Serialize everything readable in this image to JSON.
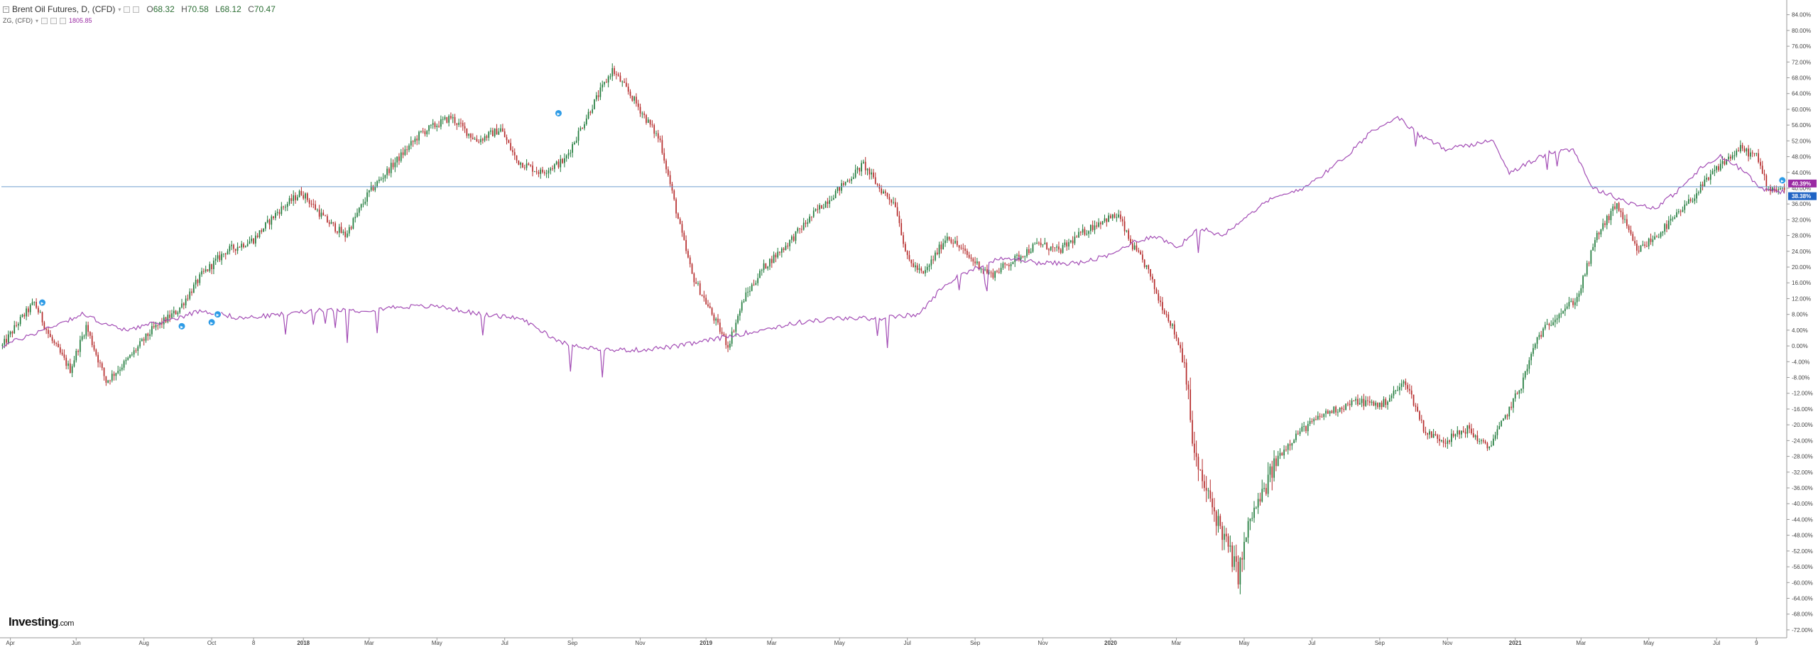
{
  "legend": {
    "main": {
      "title": "Brent Oil Futures, D, (CFD)",
      "open_label": "O",
      "open_value": "68.32",
      "high_label": "H",
      "high_value": "70.58",
      "low_label": "L",
      "low_value": "68.12",
      "close_label": "C",
      "close_value": "70.47"
    },
    "comparison": {
      "title": "ZG, (CFD)",
      "value": "1805.85"
    }
  },
  "brand": {
    "name": "Investing",
    "suffix": ".com"
  },
  "colors": {
    "up": "#1e7a3a",
    "down": "#b52b2b",
    "comparison_line": "#a34db5",
    "current_line": "#6f9fcf",
    "badge_blue": "#1f63c4",
    "badge_purple": "#9a2aa3",
    "event_marker": "#2d9be6"
  },
  "chart_data": {
    "type": "line",
    "title": "Brent Oil Futures, D, (CFD)",
    "y_unit": "%",
    "ylim": [
      -74,
      87
    ],
    "y_ticks": [
      "84.00%",
      "80.00%",
      "76.00%",
      "72.00%",
      "68.00%",
      "64.00%",
      "60.00%",
      "56.00%",
      "52.00%",
      "48.00%",
      "44.00%",
      "40.00%",
      "36.00%",
      "32.00%",
      "28.00%",
      "24.00%",
      "20.00%",
      "16.00%",
      "12.00%",
      "8.00%",
      "4.00%",
      "0.00%",
      "-4.00%",
      "-8.00%",
      "-12.00%",
      "-16.00%",
      "-20.00%",
      "-24.00%",
      "-28.00%",
      "-32.00%",
      "-36.00%",
      "-40.00%",
      "-44.00%",
      "-48.00%",
      "-52.00%",
      "-56.00%",
      "-60.00%",
      "-64.00%",
      "-68.00%",
      "-72.00%"
    ],
    "x_ticks": [
      {
        "label": "Apr",
        "idx": 4
      },
      {
        "label": "Jun",
        "idx": 37
      },
      {
        "label": "Aug",
        "idx": 71
      },
      {
        "label": "Oct",
        "idx": 105
      },
      {
        "label": "8",
        "idx": 126
      },
      {
        "label": "2018",
        "idx": 151
      },
      {
        "label": "Mar",
        "idx": 184
      },
      {
        "label": "May",
        "idx": 218
      },
      {
        "label": "Jul",
        "idx": 252
      },
      {
        "label": "Sep",
        "idx": 286
      },
      {
        "label": "Nov",
        "idx": 320
      },
      {
        "label": "2019",
        "idx": 353
      },
      {
        "label": "Mar",
        "idx": 386
      },
      {
        "label": "May",
        "idx": 420
      },
      {
        "label": "Jul",
        "idx": 454
      },
      {
        "label": "Sep",
        "idx": 488
      },
      {
        "label": "Nov",
        "idx": 522
      },
      {
        "label": "2020",
        "idx": 556
      },
      {
        "label": "Mar",
        "idx": 589
      },
      {
        "label": "May",
        "idx": 623
      },
      {
        "label": "Jul",
        "idx": 657
      },
      {
        "label": "Sep",
        "idx": 691
      },
      {
        "label": "Nov",
        "idx": 725
      },
      {
        "label": "2021",
        "idx": 759
      },
      {
        "label": "Mar",
        "idx": 792
      },
      {
        "label": "May",
        "idx": 826
      },
      {
        "label": "Jul",
        "idx": 860
      },
      {
        "label": "9",
        "idx": 880
      }
    ],
    "n_points": 895,
    "series": [
      {
        "name": "Brent Oil Futures, D, (CFD)",
        "style": "candlestick",
        "anchors": [
          [
            0,
            0
          ],
          [
            8,
            6
          ],
          [
            16,
            11
          ],
          [
            24,
            2
          ],
          [
            34,
            -6
          ],
          [
            42,
            5
          ],
          [
            52,
            -9
          ],
          [
            62,
            -4
          ],
          [
            75,
            4
          ],
          [
            88,
            9
          ],
          [
            100,
            18
          ],
          [
            112,
            24
          ],
          [
            126,
            27
          ],
          [
            138,
            34
          ],
          [
            150,
            39
          ],
          [
            162,
            32
          ],
          [
            172,
            28
          ],
          [
            184,
            39
          ],
          [
            196,
            46
          ],
          [
            210,
            54
          ],
          [
            225,
            58
          ],
          [
            238,
            52
          ],
          [
            250,
            55
          ],
          [
            258,
            47
          ],
          [
            270,
            44
          ],
          [
            282,
            47
          ],
          [
            295,
            60
          ],
          [
            306,
            70
          ],
          [
            316,
            63
          ],
          [
            330,
            52
          ],
          [
            340,
            30
          ],
          [
            346,
            18
          ],
          [
            356,
            8
          ],
          [
            364,
            0
          ],
          [
            372,
            12
          ],
          [
            382,
            20
          ],
          [
            394,
            26
          ],
          [
            408,
            34
          ],
          [
            420,
            40
          ],
          [
            432,
            46
          ],
          [
            440,
            40
          ],
          [
            448,
            36
          ],
          [
            454,
            22
          ],
          [
            462,
            18
          ],
          [
            474,
            28
          ],
          [
            486,
            22
          ],
          [
            496,
            18
          ],
          [
            508,
            22
          ],
          [
            520,
            26
          ],
          [
            530,
            24
          ],
          [
            540,
            28
          ],
          [
            552,
            32
          ],
          [
            560,
            33
          ],
          [
            566,
            26
          ],
          [
            574,
            20
          ],
          [
            580,
            12
          ],
          [
            586,
            6
          ],
          [
            592,
            -2
          ],
          [
            595,
            -10
          ],
          [
            596,
            -21
          ],
          [
            600,
            -32
          ],
          [
            608,
            -42
          ],
          [
            614,
            -50
          ],
          [
            620,
            -58
          ],
          [
            626,
            -44
          ],
          [
            632,
            -38
          ],
          [
            640,
            -28
          ],
          [
            650,
            -22
          ],
          [
            664,
            -17
          ],
          [
            680,
            -14
          ],
          [
            692,
            -15
          ],
          [
            704,
            -9
          ],
          [
            714,
            -22
          ],
          [
            724,
            -24
          ],
          [
            735,
            -21
          ],
          [
            745,
            -26
          ],
          [
            752,
            -20
          ],
          [
            762,
            -10
          ],
          [
            770,
            2
          ],
          [
            780,
            8
          ],
          [
            790,
            12
          ],
          [
            800,
            28
          ],
          [
            810,
            36
          ],
          [
            820,
            24
          ],
          [
            830,
            28
          ],
          [
            842,
            34
          ],
          [
            852,
            40
          ],
          [
            862,
            46
          ],
          [
            872,
            50
          ],
          [
            880,
            48
          ],
          [
            886,
            40
          ],
          [
            894,
            40
          ]
        ],
        "last_percent": 40.39,
        "last_value": 70.47
      },
      {
        "name": "ZG, (CFD)",
        "style": "line",
        "anchors": [
          [
            0,
            0
          ],
          [
            20,
            4
          ],
          [
            40,
            8
          ],
          [
            60,
            4
          ],
          [
            80,
            6
          ],
          [
            100,
            9
          ],
          [
            120,
            7
          ],
          [
            140,
            8
          ],
          [
            160,
            9
          ],
          [
            180,
            9
          ],
          [
            200,
            10
          ],
          [
            220,
            10
          ],
          [
            240,
            8
          ],
          [
            260,
            7
          ],
          [
            280,
            1
          ],
          [
            300,
            -1
          ],
          [
            320,
            -1
          ],
          [
            340,
            0
          ],
          [
            360,
            2
          ],
          [
            380,
            4
          ],
          [
            400,
            6
          ],
          [
            420,
            7
          ],
          [
            440,
            7
          ],
          [
            460,
            8
          ],
          [
            470,
            14
          ],
          [
            480,
            18
          ],
          [
            490,
            20
          ],
          [
            500,
            22
          ],
          [
            510,
            22
          ],
          [
            520,
            21
          ],
          [
            540,
            21
          ],
          [
            556,
            23
          ],
          [
            566,
            26
          ],
          [
            578,
            28
          ],
          [
            590,
            25
          ],
          [
            600,
            30
          ],
          [
            612,
            28
          ],
          [
            624,
            33
          ],
          [
            636,
            37
          ],
          [
            652,
            40
          ],
          [
            664,
            44
          ],
          [
            676,
            49
          ],
          [
            688,
            55
          ],
          [
            700,
            58
          ],
          [
            712,
            53
          ],
          [
            724,
            50
          ],
          [
            736,
            51
          ],
          [
            748,
            52
          ],
          [
            756,
            44
          ],
          [
            764,
            46
          ],
          [
            776,
            49
          ],
          [
            788,
            50
          ],
          [
            798,
            40
          ],
          [
            808,
            38
          ],
          [
            818,
            36
          ],
          [
            830,
            35
          ],
          [
            842,
            40
          ],
          [
            852,
            45
          ],
          [
            862,
            48
          ],
          [
            872,
            45
          ],
          [
            882,
            40
          ],
          [
            894,
            39
          ]
        ],
        "last_percent": 38.38,
        "last_value": "1805.85"
      }
    ],
    "value_labels": {
      "brent": "40.39%",
      "gold": "38.38%"
    },
    "event_markers": [
      {
        "idx": 20,
        "y": 11
      },
      {
        "idx": 90,
        "y": 5
      },
      {
        "idx": 105,
        "y": 6
      },
      {
        "idx": 108,
        "y": 8
      },
      {
        "idx": 279,
        "y": 59
      },
      {
        "idx": 893,
        "y": 42
      }
    ],
    "grid": false,
    "legend_position": "top-left"
  }
}
